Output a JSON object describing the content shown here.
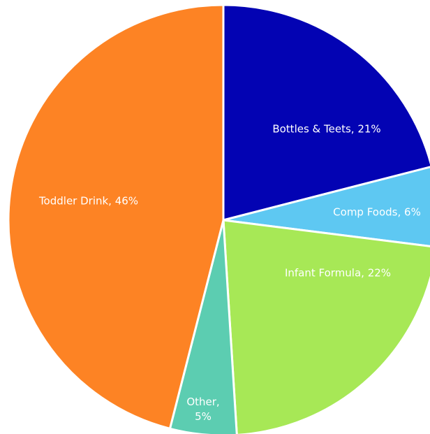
{
  "chart_data": {
    "type": "pie",
    "values": [
      21,
      6,
      22,
      5,
      46
    ],
    "value_labels": [
      "Bottles & Teets, 21%",
      "Comp Foods, 6%",
      "Infant Formula, 22%",
      "Other, 5%",
      "Toddler Drink, 46%"
    ],
    "colors": [
      "#0303b3",
      "#5ec8f2",
      "#a7e856",
      "#5ccdb1",
      "#fd8324"
    ]
  }
}
